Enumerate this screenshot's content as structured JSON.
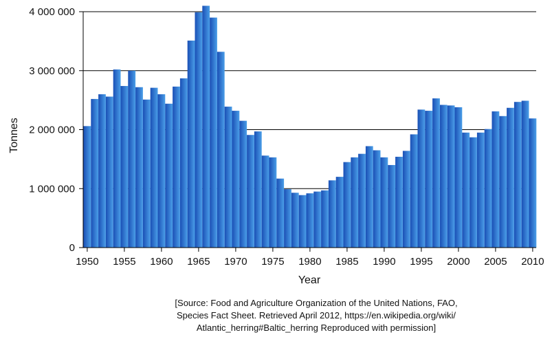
{
  "chart_data": {
    "type": "bar",
    "title": "",
    "xlabel": "Year",
    "ylabel": "Tonnes",
    "ylim": [
      0,
      4000000
    ],
    "yticks": [
      0,
      1000000,
      2000000,
      3000000,
      4000000
    ],
    "ytick_labels": [
      "0",
      "1 000 000",
      "2 000 000",
      "3 000 000",
      "4 000 000"
    ],
    "xticks": [
      1950,
      1955,
      1960,
      1965,
      1970,
      1975,
      1980,
      1985,
      1990,
      1995,
      2000,
      2005,
      2010
    ],
    "xtick_labels": [
      "1950",
      "1955",
      "1960",
      "1965",
      "1970",
      "1975",
      "1980",
      "1985",
      "1990",
      "1995",
      "2000",
      "2005",
      "2010"
    ],
    "grid": "horizontal",
    "legend": "none",
    "colors": {
      "bar_dark": "#1a4fb5",
      "bar_light": "#4a9ee8",
      "gridline": "#000000"
    },
    "categories": [
      1950,
      1951,
      1952,
      1953,
      1954,
      1955,
      1956,
      1957,
      1958,
      1959,
      1960,
      1961,
      1962,
      1963,
      1964,
      1965,
      1966,
      1967,
      1968,
      1969,
      1970,
      1971,
      1972,
      1973,
      1974,
      1975,
      1976,
      1977,
      1978,
      1979,
      1980,
      1981,
      1982,
      1983,
      1984,
      1985,
      1986,
      1987,
      1988,
      1989,
      1990,
      1991,
      1992,
      1993,
      1994,
      1995,
      1996,
      1997,
      1998,
      1999,
      2000,
      2001,
      2002,
      2003,
      2004,
      2005,
      2006,
      2007,
      2008,
      2009,
      2010
    ],
    "values": [
      2060000,
      2520000,
      2600000,
      2560000,
      3020000,
      2740000,
      3000000,
      2720000,
      2510000,
      2710000,
      2600000,
      2440000,
      2730000,
      2870000,
      3510000,
      3990000,
      4100000,
      3900000,
      3320000,
      2390000,
      2320000,
      2150000,
      1910000,
      1970000,
      1560000,
      1530000,
      1170000,
      990000,
      930000,
      890000,
      920000,
      950000,
      970000,
      1140000,
      1200000,
      1450000,
      1530000,
      1590000,
      1720000,
      1650000,
      1530000,
      1400000,
      1540000,
      1640000,
      1920000,
      2340000,
      2320000,
      2530000,
      2420000,
      2410000,
      2380000,
      1950000,
      1870000,
      1950000,
      2010000,
      2310000,
      2230000,
      2370000,
      2470000,
      2490000,
      2190000
    ]
  },
  "source_note": {
    "line1": "[Source: Food and Agriculture Organization of the United Nations, FAO,",
    "line2": "Species Fact Sheet. Retrieved April 2012, https://en.wikipedia.org/wiki/",
    "line3": "Atlantic_herring#Baltic_herring Reproduced with permission]"
  }
}
